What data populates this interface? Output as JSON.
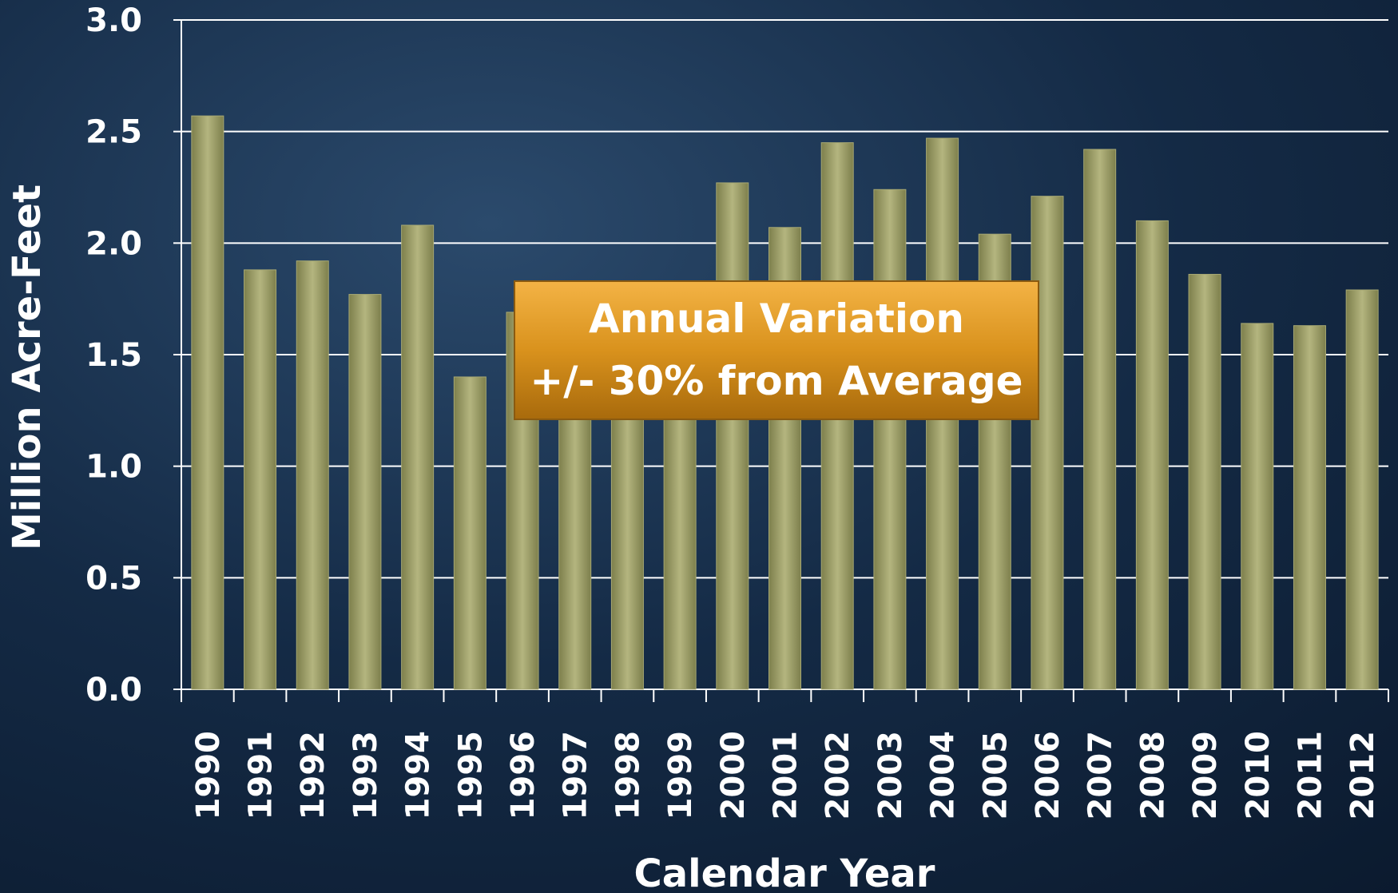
{
  "chart_data": {
    "type": "bar",
    "y_axis_label": "Million Acre-Feet",
    "x_axis_label": "Calendar Year",
    "annotation": [
      "Annual Variation",
      "+/- 30% from Average"
    ],
    "categories": [
      "1990",
      "1991",
      "1992",
      "1993",
      "1994",
      "1995",
      "1996",
      "1997",
      "1998",
      "1999",
      "2000",
      "2001",
      "2002",
      "2003",
      "2004",
      "2005",
      "2006",
      "2007",
      "2008",
      "2009",
      "2010",
      "2011",
      "2012"
    ],
    "values": [
      2.57,
      1.88,
      1.92,
      1.77,
      2.08,
      1.4,
      1.69,
      1.65,
      1.55,
      1.45,
      2.27,
      2.07,
      2.45,
      2.24,
      2.47,
      2.04,
      2.21,
      2.42,
      2.1,
      1.86,
      1.64,
      1.63,
      1.79
    ],
    "color": "#a7a873",
    "ylim": [
      0,
      3
    ],
    "yticks": [
      {
        "value": 0,
        "label": "0.0"
      },
      0.5,
      {
        "value": 1,
        "label": "1.0"
      },
      1.5,
      {
        "value": 2,
        "label": "2.0"
      },
      2.5,
      {
        "value": 3,
        "label": "3.0"
      }
    ],
    "grid": true
  }
}
